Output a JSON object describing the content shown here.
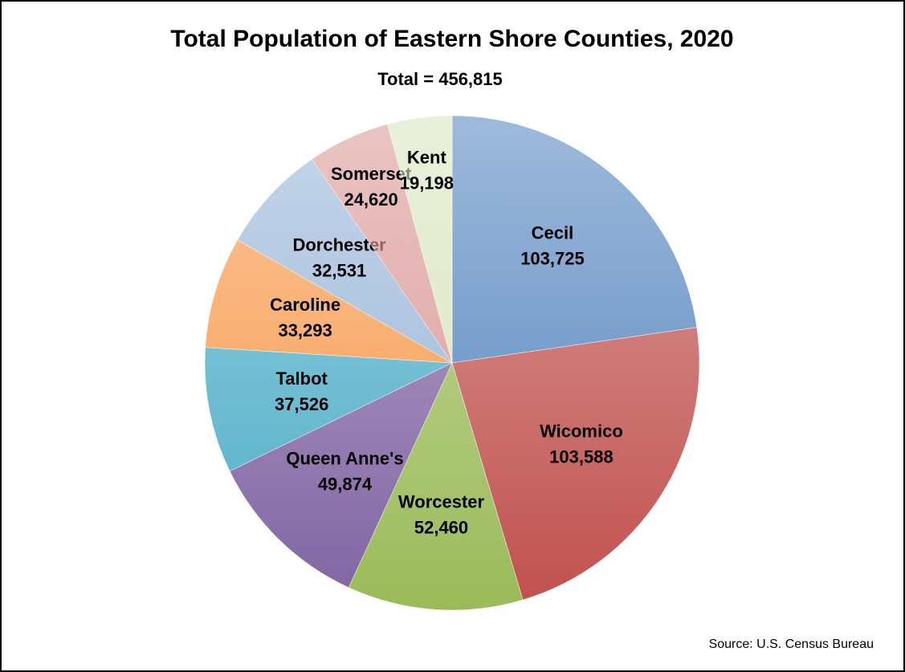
{
  "chart_data": {
    "type": "pie",
    "title": "Total Population of Eastern Shore Counties, 2020",
    "subtitle": "Total = 456,815",
    "source": "Source: U.S. Census Bureau",
    "categories": [
      "Cecil",
      "Wicomico",
      "Worcester",
      "Queen Anne's",
      "Talbot",
      "Caroline",
      "Dorchester",
      "Somerset",
      "Kent"
    ],
    "values": [
      103725,
      103588,
      52460,
      49874,
      37526,
      33293,
      32531,
      24620,
      19198
    ],
    "value_labels": [
      "103,725",
      "103,588",
      "52,460",
      "49,874",
      "37,526",
      "33,293",
      "32,531",
      "24,620",
      "19,198"
    ],
    "colors": [
      "#4f81bd",
      "#c0504d",
      "#9bbb59",
      "#8064a2",
      "#4bacc6",
      "#f79646",
      "#95b3d7",
      "#d99694",
      "#d7e4bc"
    ]
  }
}
